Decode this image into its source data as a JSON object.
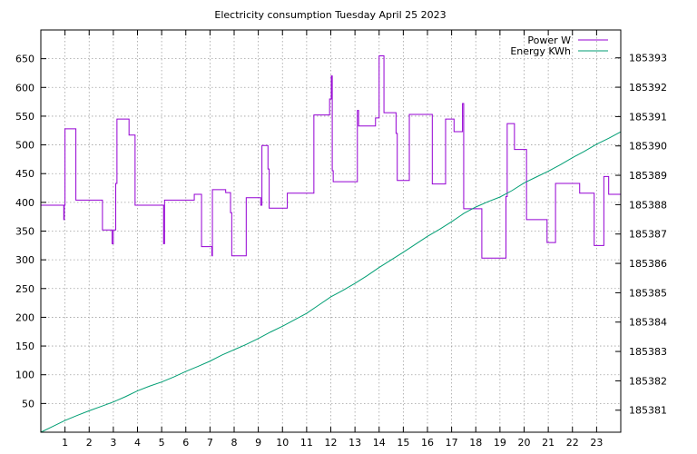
{
  "chart_data": {
    "type": "line",
    "title": "Electricity consumption Tuesday April 25 2023",
    "xlabel": "",
    "ylabel": "",
    "y2label": "",
    "grid": true,
    "legend": "top-right",
    "xlim": [
      0,
      24
    ],
    "ylim": [
      0,
      700
    ],
    "y2lim": [
      185380.25,
      185393.95
    ],
    "x_ticks": [
      1,
      2,
      3,
      4,
      5,
      6,
      7,
      8,
      9,
      10,
      11,
      12,
      13,
      14,
      15,
      16,
      17,
      18,
      19,
      20,
      21,
      22,
      23
    ],
    "y_ticks": [
      50,
      100,
      150,
      200,
      250,
      300,
      350,
      400,
      450,
      500,
      550,
      600,
      650
    ],
    "y2_ticks": [
      185381,
      185382,
      185383,
      185384,
      185385,
      185386,
      185387,
      185388,
      185389,
      185390,
      185391,
      185392,
      185393
    ],
    "series": [
      {
        "name": "Power W",
        "axis": "left",
        "color": "#9400d3",
        "step": true,
        "x": [
          0,
          0.95,
          0.97,
          1.0,
          1.4,
          1.45,
          2.5,
          2.55,
          2.95,
          3.0,
          3.1,
          3.15,
          3.6,
          3.65,
          3.85,
          3.9,
          5.05,
          5.08,
          5.12,
          6.3,
          6.35,
          6.6,
          6.65,
          7.05,
          7.08,
          7.1,
          7.6,
          7.65,
          7.85,
          7.9,
          7.95,
          8.5,
          8.55,
          9.1,
          9.15,
          9.35,
          9.4,
          9.45,
          10.15,
          10.2,
          11.2,
          11.3,
          11.95,
          11.98,
          12.02,
          12.06,
          12.1,
          13.05,
          13.1,
          13.15,
          13.8,
          13.85,
          14.0,
          14.05,
          14.2,
          14.25,
          14.7,
          14.75,
          14.8,
          15.2,
          15.25,
          16.15,
          16.2,
          16.7,
          16.75,
          17.05,
          17.1,
          17.4,
          17.45,
          17.5,
          18.2,
          18.25,
          19.2,
          19.25,
          19.3,
          19.55,
          19.6,
          20.05,
          20.1,
          20.9,
          20.95,
          21.25,
          21.3,
          22.25,
          22.3,
          22.85,
          22.9,
          23.25,
          23.3,
          23.5,
          24.0
        ],
        "values": [
          395,
          370,
          395,
          528,
          528,
          404,
          404,
          352,
          328,
          352,
          433,
          545,
          545,
          517,
          517,
          395,
          395,
          328,
          404,
          404,
          414,
          414,
          323,
          323,
          307,
          422,
          422,
          417,
          382,
          307,
          307,
          408,
          408,
          395,
          499,
          499,
          458,
          390,
          390,
          416,
          416,
          552,
          580,
          580,
          620,
          455,
          436,
          436,
          560,
          533,
          533,
          547,
          655,
          655,
          556,
          556,
          520,
          438,
          438,
          438,
          553,
          553,
          432,
          432,
          545,
          545,
          523,
          523,
          572,
          389,
          389,
          303,
          303,
          410,
          537,
          537,
          492,
          492,
          370,
          370,
          330,
          330,
          433,
          433,
          416,
          416,
          325,
          325,
          445,
          414,
          414
        ]
      },
      {
        "name": "Energy KWh",
        "axis": "right",
        "color": "#009e73",
        "step": false,
        "x": [
          0,
          0.5,
          1.0,
          1.5,
          2.0,
          2.5,
          3.0,
          3.5,
          4.0,
          4.5,
          5.0,
          5.5,
          6.0,
          6.5,
          7.0,
          7.5,
          8.0,
          8.5,
          9.0,
          9.5,
          10.0,
          10.5,
          11.0,
          11.5,
          12.0,
          12.5,
          13.0,
          13.5,
          14.0,
          14.5,
          15.0,
          15.5,
          16.0,
          16.5,
          17.0,
          17.5,
          18.0,
          18.5,
          19.0,
          19.5,
          20.0,
          20.5,
          21.0,
          21.5,
          22.0,
          22.5,
          23.0,
          23.5,
          24.0
        ],
        "values": [
          185380.25,
          185380.45,
          185380.65,
          185380.82,
          185380.98,
          185381.13,
          185381.28,
          185381.46,
          185381.66,
          185381.82,
          185381.96,
          185382.13,
          185382.32,
          185382.49,
          185382.67,
          185382.88,
          185383.06,
          185383.24,
          185383.44,
          185383.66,
          185383.86,
          185384.08,
          185384.3,
          185384.58,
          185384.86,
          185385.08,
          185385.32,
          185385.58,
          185385.86,
          185386.12,
          185386.38,
          185386.65,
          185386.92,
          185387.16,
          185387.42,
          185387.7,
          185387.92,
          185388.1,
          185388.26,
          185388.48,
          185388.74,
          185388.94,
          185389.14,
          185389.36,
          185389.6,
          185389.82,
          185390.06,
          185390.26,
          185390.48
        ]
      }
    ]
  }
}
